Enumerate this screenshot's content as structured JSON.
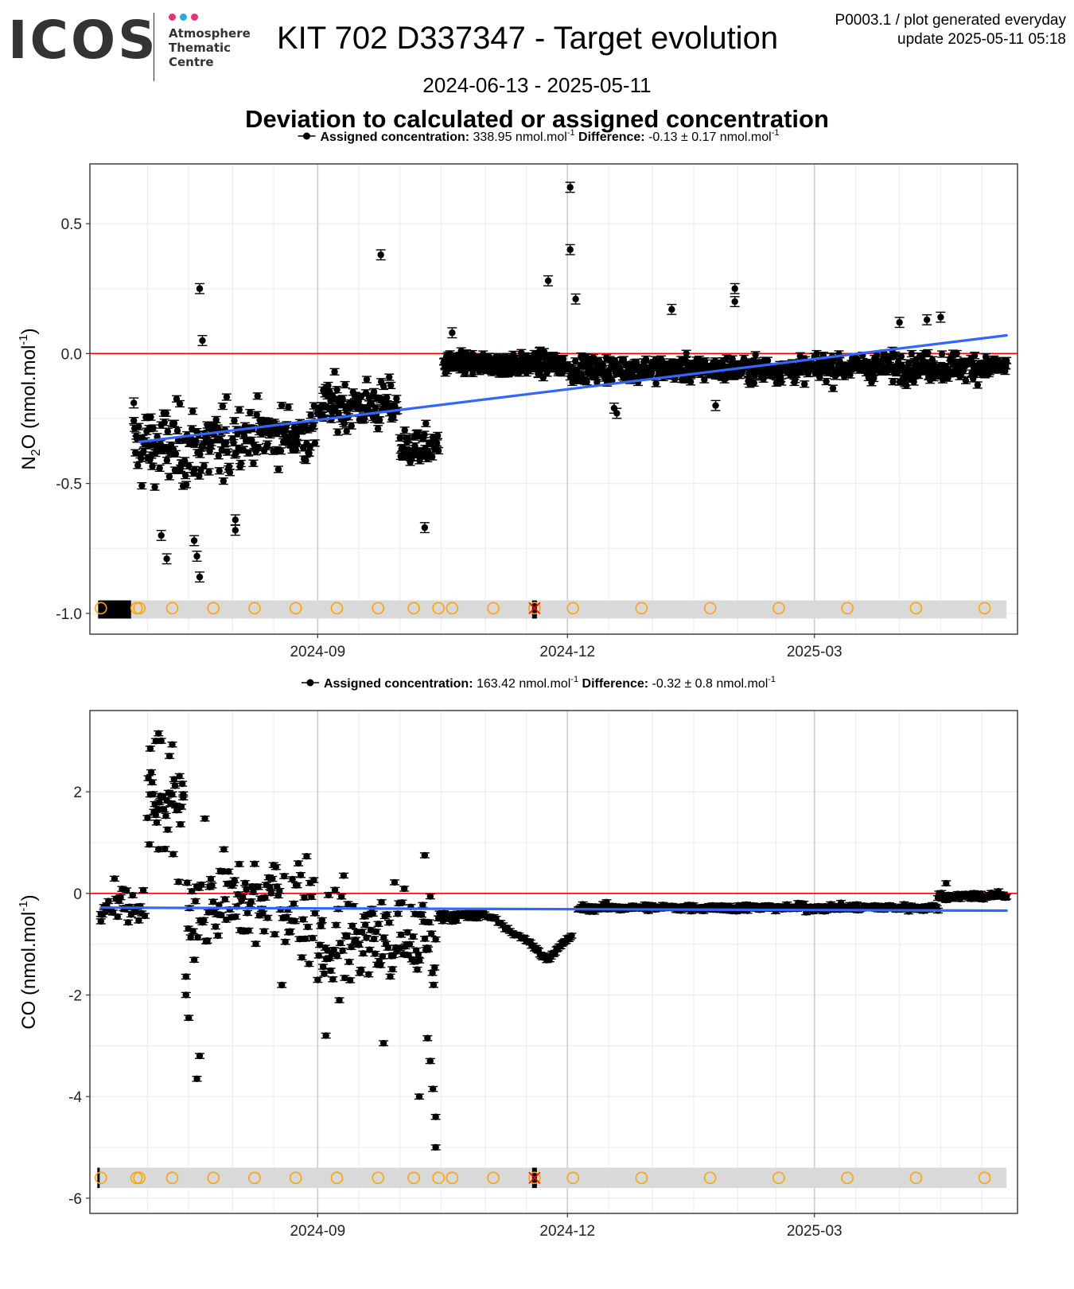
{
  "header": {
    "logo_text": "ICOS",
    "logo_subtitle": [
      "Atmosphere",
      "Thematic",
      "Centre"
    ],
    "logo_dot_colors": [
      "#e6317c",
      "#2aa8e0",
      "#e6317c"
    ],
    "title": "KIT 702 D337347 - Target evolution",
    "meta_line1": "P0003.1 / plot generated everyday",
    "meta_line2": "update  2025-05-11 05:18",
    "date_range": "2024-06-13 - 2025-05-11",
    "subtitle": "Deviation to calculated or assigned concentration"
  },
  "colors": {
    "points": "#000000",
    "zero_line": "#ff0000",
    "trend_line": "#3366ff",
    "event_circle": "#ffa500",
    "event_band": "#d9d9d9",
    "panel_border": "#333333",
    "grid_major": "#cccccc",
    "grid_minor": "#ececec"
  },
  "chart_data": [
    {
      "type": "scatter",
      "gas": "N2O",
      "ylabel_main": "N",
      "ylabel_sub": "2",
      "ylabel_rest": "O (nmol.mol",
      "ylabel_sup": "-1",
      "ylabel_end": ")",
      "legend_label": "Assigned concentration:",
      "legend_value": "338.95 nmol.mol",
      "legend_sup": "-1",
      "legend_diff_label": "Difference:",
      "legend_diff_value": "-0.13 ± 0.17 nmol.mol",
      "xlim": [
        "2024-06-10",
        "2025-05-14"
      ],
      "ylim": [
        -1.08,
        0.73
      ],
      "yticks": [
        0.5,
        0.0,
        -0.5,
        -1.0
      ],
      "ytick_labels": [
        "0.5",
        "0.0",
        "-0.5",
        "-1.0"
      ],
      "xticks": [
        "2024-09-01",
        "2024-12-01",
        "2025-03-01"
      ],
      "xtick_labels": [
        "2024-09",
        "2024-12",
        "2025-03"
      ],
      "grid": true,
      "zero_line": 0,
      "trend": {
        "x": [
          "2024-06-28",
          "2025-05-10"
        ],
        "y": [
          -0.34,
          0.07
        ]
      },
      "segments": [
        {
          "start": "2024-06-26",
          "end": "2024-07-31",
          "center": -0.36,
          "spread": 0.13,
          "count": 120,
          "err": 0.012
        },
        {
          "start": "2024-08-01",
          "end": "2024-08-31",
          "center": -0.31,
          "spread": 0.09,
          "count": 100,
          "err": 0.012
        },
        {
          "start": "2024-09-01",
          "end": "2024-09-30",
          "center": -0.2,
          "spread": 0.08,
          "count": 100,
          "err": 0.012
        },
        {
          "start": "2024-10-01",
          "end": "2024-10-15",
          "center": -0.36,
          "spread": 0.06,
          "count": 50,
          "err": 0.012
        },
        {
          "start": "2024-10-17",
          "end": "2024-11-30",
          "center": -0.04,
          "spread": 0.035,
          "count": 260,
          "err": 0.012
        },
        {
          "start": "2024-12-01",
          "end": "2025-02-28",
          "center": -0.06,
          "spread": 0.04,
          "count": 340,
          "err": 0.012
        },
        {
          "start": "2025-03-01",
          "end": "2025-05-10",
          "center": -0.05,
          "spread": 0.045,
          "count": 260,
          "err": 0.012
        }
      ],
      "points": [
        {
          "x": "2024-07-20",
          "y": 0.25
        },
        {
          "x": "2024-07-21",
          "y": 0.05
        },
        {
          "x": "2024-09-24",
          "y": 0.38
        },
        {
          "x": "2024-10-20",
          "y": 0.08
        },
        {
          "x": "2024-11-24",
          "y": 0.28
        },
        {
          "x": "2024-12-02",
          "y": 0.64
        },
        {
          "x": "2024-12-02",
          "y": 0.4
        },
        {
          "x": "2024-12-04",
          "y": 0.21
        },
        {
          "x": "2025-01-08",
          "y": 0.17
        },
        {
          "x": "2025-01-31",
          "y": 0.25
        },
        {
          "x": "2025-01-31",
          "y": 0.2
        },
        {
          "x": "2025-04-16",
          "y": 0.14
        },
        {
          "x": "2025-04-11",
          "y": 0.13
        },
        {
          "x": "2025-04-01",
          "y": 0.12
        },
        {
          "x": "2024-07-08",
          "y": -0.79
        },
        {
          "x": "2024-07-06",
          "y": -0.7
        },
        {
          "x": "2024-07-20",
          "y": -0.86
        },
        {
          "x": "2024-07-19",
          "y": -0.78
        },
        {
          "x": "2024-07-18",
          "y": -0.72
        },
        {
          "x": "2024-08-02",
          "y": -0.64
        },
        {
          "x": "2024-08-02",
          "y": -0.68
        },
        {
          "x": "2024-10-10",
          "y": -0.67
        },
        {
          "x": "2024-06-26",
          "y": -0.19
        },
        {
          "x": "2024-12-19",
          "y": -0.23
        },
        {
          "x": "2024-12-18",
          "y": -0.21
        },
        {
          "x": "2025-01-24",
          "y": -0.2
        }
      ],
      "events_x": [
        "2024-06-14",
        "2024-06-27",
        "2024-06-28",
        "2024-07-10",
        "2024-07-25",
        "2024-08-09",
        "2024-08-24",
        "2024-09-08",
        "2024-09-23",
        "2024-10-06",
        "2024-10-15",
        "2024-10-20",
        "2024-11-04",
        "2024-11-19",
        "2024-12-03",
        "2024-12-28",
        "2025-01-22",
        "2025-02-16",
        "2025-03-13",
        "2025-04-07",
        "2025-05-02"
      ],
      "event_y": -0.98,
      "event_band": [
        -1.02,
        -0.95
      ],
      "event_block": [
        "2024-06-13",
        "2024-06-25"
      ],
      "event_bar_x": "2024-11-19",
      "event_cross_x": "2024-11-19"
    },
    {
      "type": "scatter",
      "gas": "CO",
      "ylabel_main": "CO (nmol.mol",
      "ylabel_sup": "-1",
      "ylabel_end": ")",
      "legend_label": "Assigned concentration:",
      "legend_value": "163.42 nmol.mol",
      "legend_sup": "-1",
      "legend_diff_label": "Difference:",
      "legend_diff_value": "-0.32 ± 0.8 nmol.mol",
      "xlim": [
        "2024-06-10",
        "2025-05-14"
      ],
      "ylim": [
        -6.3,
        3.6
      ],
      "yticks": [
        2,
        0,
        -2,
        -4,
        -6
      ],
      "ytick_labels": [
        "2",
        "0",
        "-2",
        "-4",
        "-6"
      ],
      "xticks": [
        "2024-09-01",
        "2024-12-01",
        "2025-03-01"
      ],
      "xtick_labels": [
        "2024-09",
        "2024-12",
        "2025-03"
      ],
      "grid": true,
      "zero_line": 0,
      "trend": {
        "x": [
          "2024-06-14",
          "2025-05-10"
        ],
        "y": [
          -0.28,
          -0.34
        ]
      },
      "segments": [
        {
          "start": "2024-06-14",
          "end": "2024-06-30",
          "center": -0.3,
          "spread": 0.35,
          "count": 30,
          "err": 0.03
        },
        {
          "start": "2024-07-01",
          "end": "2024-07-14",
          "center": 1.6,
          "spread": 0.9,
          "count": 40,
          "err": 0.03
        },
        {
          "start": "2024-07-15",
          "end": "2024-08-31",
          "center": -0.2,
          "spread": 0.9,
          "count": 110,
          "err": 0.03
        },
        {
          "start": "2024-09-01",
          "end": "2024-10-14",
          "center": -0.9,
          "spread": 0.9,
          "count": 110,
          "err": 0.03
        },
        {
          "start": "2024-10-15",
          "end": "2024-10-31",
          "center": -0.45,
          "spread": 0.08,
          "count": 40,
          "err": 0.03
        },
        {
          "start": "2024-12-05",
          "end": "2025-04-15",
          "center": -0.28,
          "spread": 0.06,
          "count": 320,
          "err": 0.03
        },
        {
          "start": "2025-04-15",
          "end": "2025-05-10",
          "center": -0.05,
          "spread": 0.07,
          "count": 60,
          "err": 0.03
        }
      ],
      "curve": {
        "x": [
          "2024-10-31",
          "2024-11-05",
          "2024-11-10",
          "2024-11-15",
          "2024-11-18",
          "2024-11-21",
          "2024-11-24",
          "2024-11-27",
          "2024-11-30",
          "2024-12-03"
        ],
        "y": [
          -0.4,
          -0.5,
          -0.75,
          -0.9,
          -1.0,
          -1.2,
          -1.3,
          -1.1,
          -0.95,
          -0.8
        ]
      },
      "points": [
        {
          "x": "2024-07-05",
          "y": 3.15
        },
        {
          "x": "2024-07-04",
          "y": 3.0
        },
        {
          "x": "2024-07-02",
          "y": 2.85
        },
        {
          "x": "2024-07-10",
          "y": 1.95
        },
        {
          "x": "2024-07-14",
          "y": 1.95
        },
        {
          "x": "2024-07-20",
          "y": -3.2
        },
        {
          "x": "2024-07-19",
          "y": -3.65
        },
        {
          "x": "2024-07-16",
          "y": -2.45
        },
        {
          "x": "2024-07-15",
          "y": -2.0
        },
        {
          "x": "2024-09-04",
          "y": -2.8
        },
        {
          "x": "2024-09-25",
          "y": -2.95
        },
        {
          "x": "2024-10-08",
          "y": -4.0
        },
        {
          "x": "2024-10-14",
          "y": -5.0
        },
        {
          "x": "2024-10-14",
          "y": -4.4
        },
        {
          "x": "2024-10-13",
          "y": -3.85
        },
        {
          "x": "2024-10-12",
          "y": -3.3
        },
        {
          "x": "2024-10-11",
          "y": -2.85
        },
        {
          "x": "2024-10-10",
          "y": 0.75
        },
        {
          "x": "2025-04-18",
          "y": 0.2
        },
        {
          "x": "2024-06-14",
          "y": -0.55
        }
      ],
      "events_x": [
        "2024-06-14",
        "2024-06-27",
        "2024-06-28",
        "2024-07-10",
        "2024-07-25",
        "2024-08-09",
        "2024-08-24",
        "2024-09-08",
        "2024-09-23",
        "2024-10-06",
        "2024-10-15",
        "2024-10-20",
        "2024-11-04",
        "2024-11-19",
        "2024-12-03",
        "2024-12-28",
        "2025-01-22",
        "2025-02-16",
        "2025-03-13",
        "2025-04-07",
        "2025-05-02"
      ],
      "event_y": -5.6,
      "event_band": [
        -5.8,
        -5.4
      ],
      "event_block": null,
      "event_bar_x": "2024-11-19",
      "event_cross_x": "2024-11-19"
    }
  ]
}
